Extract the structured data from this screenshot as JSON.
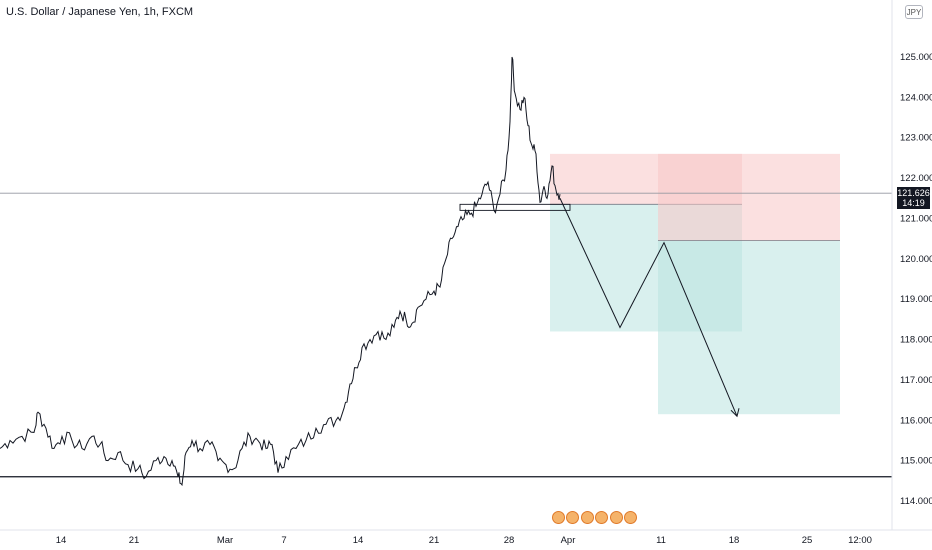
{
  "title": "U.S. Dollar / Japanese Yen, 1h, FXCM",
  "currency": "JPY",
  "current_price": {
    "value": "121.626",
    "countdown": "14:19"
  },
  "colors": {
    "candles": "#131722",
    "stop_zone": "#f7c6c6",
    "stop_zone_dark": "#f48a8a",
    "target_zone": "#b9e3e0",
    "target_zone_dark": "#8ccfcb",
    "grid_line": "#131722"
  },
  "chart_data": {
    "type": "line",
    "xlabel": "",
    "ylabel": "",
    "x_ticks": [
      "14",
      "21",
      "Mar",
      "7",
      "14",
      "21",
      "28",
      "Apr",
      "11",
      "18",
      "25",
      "12:00"
    ],
    "y_ticks": [
      "114.000",
      "115.000",
      "116.000",
      "117.000",
      "118.000",
      "119.000",
      "120.000",
      "121.000",
      "122.000",
      "123.000",
      "124.000",
      "125.000"
    ],
    "ylim": [
      113.7,
      126.2
    ],
    "price_path": [
      [
        0,
        115.3
      ],
      [
        10,
        115.5
      ],
      [
        22,
        115.6
      ],
      [
        34,
        115.7
      ],
      [
        38,
        116.2
      ],
      [
        46,
        115.8
      ],
      [
        54,
        115.3
      ],
      [
        62,
        115.6
      ],
      [
        72,
        115.5
      ],
      [
        82,
        115.3
      ],
      [
        92,
        115.6
      ],
      [
        100,
        115.4
      ],
      [
        108,
        115.0
      ],
      [
        118,
        115.2
      ],
      [
        128,
        114.9
      ],
      [
        138,
        114.8
      ],
      [
        146,
        114.6
      ],
      [
        156,
        115.0
      ],
      [
        164,
        115.1
      ],
      [
        172,
        115.0
      ],
      [
        178,
        114.6
      ],
      [
        182,
        114.4
      ],
      [
        186,
        115.2
      ],
      [
        192,
        115.5
      ],
      [
        200,
        115.3
      ],
      [
        210,
        115.4
      ],
      [
        218,
        115.0
      ],
      [
        226,
        114.9
      ],
      [
        234,
        114.8
      ],
      [
        242,
        115.3
      ],
      [
        250,
        115.6
      ],
      [
        258,
        115.5
      ],
      [
        266,
        115.3
      ],
      [
        272,
        115.4
      ],
      [
        278,
        114.7
      ],
      [
        286,
        115.1
      ],
      [
        296,
        115.3
      ],
      [
        306,
        115.5
      ],
      [
        316,
        115.8
      ],
      [
        326,
        115.9
      ],
      [
        336,
        116.0
      ],
      [
        344,
        116.3
      ],
      [
        350,
        116.9
      ],
      [
        356,
        117.3
      ],
      [
        362,
        117.8
      ],
      [
        370,
        118.0
      ],
      [
        378,
        118.2
      ],
      [
        386,
        118.0
      ],
      [
        394,
        118.3
      ],
      [
        400,
        118.7
      ],
      [
        406,
        118.5
      ],
      [
        412,
        118.4
      ],
      [
        418,
        118.8
      ],
      [
        426,
        119.0
      ],
      [
        434,
        119.2
      ],
      [
        440,
        119.3
      ],
      [
        446,
        120.0
      ],
      [
        452,
        120.5
      ],
      [
        458,
        120.8
      ],
      [
        464,
        121.0
      ],
      [
        470,
        121.1
      ],
      [
        476,
        121.3
      ],
      [
        482,
        121.6
      ],
      [
        488,
        121.9
      ],
      [
        494,
        121.2
      ],
      [
        500,
        121.6
      ],
      [
        506,
        122.2
      ],
      [
        510,
        123.4
      ],
      [
        512,
        125.0
      ],
      [
        515,
        124.1
      ],
      [
        520,
        123.7
      ],
      [
        524,
        124.0
      ],
      [
        528,
        123.3
      ],
      [
        532,
        122.8
      ],
      [
        536,
        122.6
      ],
      [
        540,
        121.4
      ],
      [
        544,
        121.8
      ],
      [
        548,
        121.6
      ],
      [
        552,
        122.3
      ],
      [
        556,
        121.7
      ],
      [
        560,
        121.6
      ]
    ],
    "projection_path": [
      [
        560,
        121.5
      ],
      [
        620,
        118.3
      ],
      [
        664,
        120.4
      ],
      [
        737,
        116.1
      ]
    ],
    "horizontal_levels": [
      121.626,
      114.6
    ],
    "consolidation_box": {
      "x": [
        460,
        570
      ],
      "y": [
        121.2,
        121.35
      ]
    },
    "positions": [
      {
        "name": "short-position-1",
        "x": [
          550,
          742
        ],
        "entry": 121.35,
        "stop": 122.6,
        "target": 118.2
      },
      {
        "name": "short-position-2",
        "x": [
          658,
          840
        ],
        "entry": 120.45,
        "stop": 122.6,
        "target": 116.15
      }
    ]
  }
}
